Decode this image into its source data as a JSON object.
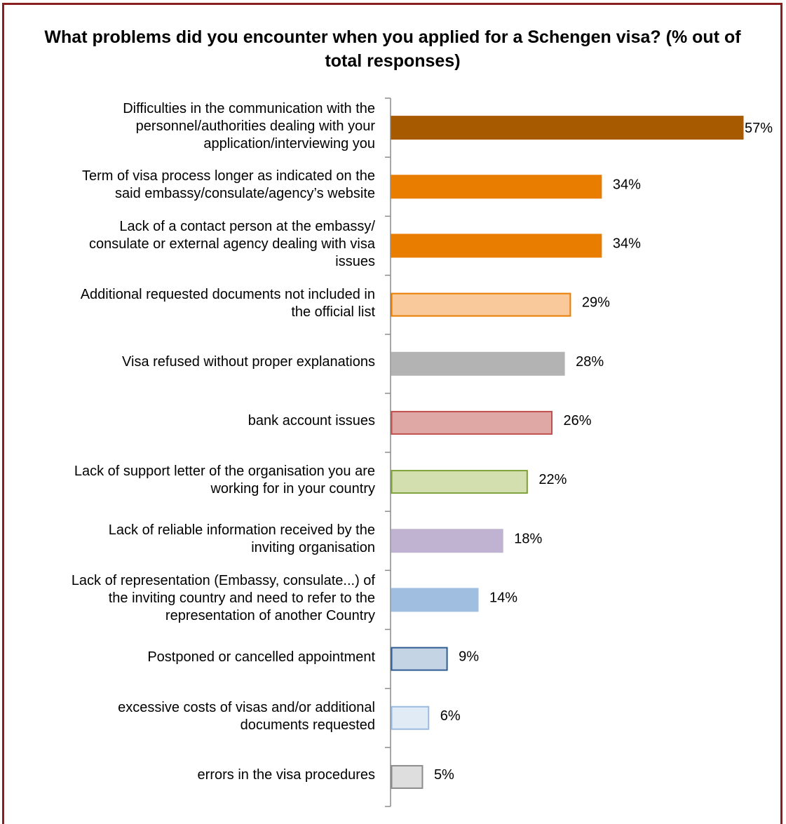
{
  "chart_data": {
    "type": "bar",
    "orientation": "horizontal",
    "title": "What problems did you encounter when you applied for a Schengen visa? (% out of total responses)",
    "xlabel": "",
    "ylabel": "",
    "xlim": [
      0,
      57
    ],
    "grid": false,
    "legend": "none",
    "categories": [
      "Difficulties in the communication with the personnel/authorities dealing with your application/interviewing you",
      "Term of visa process longer as indicated on the said embassy/consulate/agency’s website",
      "Lack of a contact person at the embassy/ consulate or external agency dealing with visa issues",
      "Additional requested documents not included in the official list",
      "Visa refused without proper explanations",
      "bank account issues",
      "Lack of support letter of the organisation you are working for in your country",
      "Lack of reliable information received by the inviting organisation",
      "Lack of representation (Embassy, consulate...) of the inviting country and need to refer to the representation of another Country",
      "Postponed or cancelled appointment",
      "excessive costs  of visas and/or additional documents requested",
      "errors in the visa procedures"
    ],
    "category_lines": [
      [
        "Difficulties in the communication with the",
        "personnel/authorities dealing with your",
        "application/interviewing you"
      ],
      [
        "Term of visa process longer as indicated on the",
        "said embassy/consulate/agency’s website"
      ],
      [
        "Lack of a contact person at the embassy/",
        "consulate or external agency dealing with visa",
        "issues"
      ],
      [
        "Additional requested documents not included in",
        "the official list"
      ],
      [
        "Visa refused without proper explanations"
      ],
      [
        "bank account issues"
      ],
      [
        "Lack of support letter of the organisation you are",
        "working for in your country"
      ],
      [
        "Lack of reliable information received by the",
        "inviting organisation"
      ],
      [
        "Lack of representation (Embassy, consulate...) of",
        "the inviting country and need to refer to the",
        "representation of another Country"
      ],
      [
        "Postponed or cancelled appointment"
      ],
      [
        "excessive costs  of visas and/or additional",
        "documents requested"
      ],
      [
        "errors in the visa procedures"
      ]
    ],
    "values": [
      57,
      34,
      34,
      29,
      28,
      26,
      22,
      18,
      14,
      9,
      6,
      5
    ],
    "value_labels": [
      "57%",
      "34%",
      "34%",
      "29%",
      "28%",
      "26%",
      "22%",
      "18%",
      "14%",
      "9%",
      "6%",
      "5%"
    ],
    "bar_fill": [
      "#a85a00",
      "#e87d00",
      "#e87d00",
      "#f9c89b",
      "#b3b3b3",
      "#e0a8a5",
      "#d3dfae",
      "#c0b3d1",
      "#a0bfe0",
      "#c5d4e5",
      "#e1ebf5",
      "#dedede"
    ],
    "bar_stroke": [
      "#a85a00",
      "#e87d00",
      "#e87d00",
      "#e87d00",
      "#b3b3b3",
      "#c0504d",
      "#7ea13c",
      "#c0b3d1",
      "#a0bfe0",
      "#2e5c92",
      "#9bbbe0",
      "#8c8c8c"
    ]
  }
}
